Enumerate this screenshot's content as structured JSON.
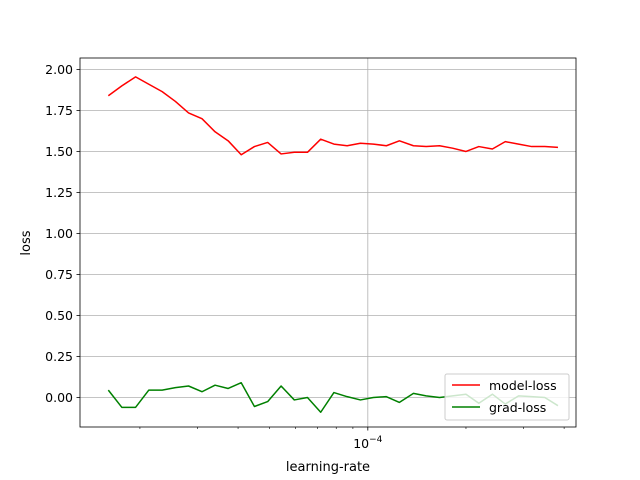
{
  "chart_data": {
    "type": "line",
    "xlabel": "learning-rate",
    "ylabel": "loss",
    "x_scale": "log",
    "x_tick_label": "10",
    "x_tick_exponent": "−4",
    "x_tick_value": 0.0001,
    "xlim": [
      1.31e-05,
      0.000435
    ],
    "ylim": [
      -0.18,
      2.07
    ],
    "y_ticks": [
      {
        "value": 0.0,
        "label": "0.00"
      },
      {
        "value": 0.25,
        "label": "0.25"
      },
      {
        "value": 0.5,
        "label": "0.50"
      },
      {
        "value": 0.75,
        "label": "0.75"
      },
      {
        "value": 1.0,
        "label": "1.00"
      },
      {
        "value": 1.25,
        "label": "1.25"
      },
      {
        "value": 1.5,
        "label": "1.50"
      },
      {
        "value": 1.75,
        "label": "1.75"
      },
      {
        "value": 2.0,
        "label": "2.00"
      }
    ],
    "grid": true,
    "legend_position": "bottom-right",
    "x": [
      1.6e-05,
      1.76e-05,
      1.94e-05,
      2.13e-05,
      2.34e-05,
      2.57e-05,
      2.82e-05,
      3.1e-05,
      3.4e-05,
      3.73e-05,
      4.09e-05,
      4.49e-05,
      4.93e-05,
      5.42e-05,
      5.95e-05,
      6.53e-05,
      7.17e-05,
      7.87e-05,
      8.64e-05,
      9.49e-05,
      0.000104,
      0.000114,
      0.000125,
      0.000138,
      0.000151,
      0.000166,
      0.000182,
      0.0002,
      0.000219,
      0.000241,
      0.000264,
      0.00029,
      0.000318,
      0.000349,
      0.000383
    ],
    "series": [
      {
        "name": "model-loss",
        "color": "#ff0000",
        "values": [
          1.84,
          1.9,
          1.955,
          1.91,
          1.865,
          1.805,
          1.735,
          1.7,
          1.62,
          1.565,
          1.48,
          1.53,
          1.555,
          1.485,
          1.495,
          1.495,
          1.575,
          1.545,
          1.535,
          1.55,
          1.545,
          1.535,
          1.565,
          1.535,
          1.53,
          1.535,
          1.52,
          1.5,
          1.53,
          1.515,
          1.56,
          1.545,
          1.53,
          1.53,
          1.525
        ]
      },
      {
        "name": "grad-loss",
        "color": "#008000",
        "values": [
          0.045,
          -0.06,
          -0.06,
          0.045,
          0.045,
          0.06,
          0.07,
          0.035,
          0.075,
          0.055,
          0.09,
          -0.055,
          -0.025,
          0.07,
          -0.015,
          0.0,
          -0.09,
          0.03,
          0.005,
          -0.015,
          0.0,
          0.005,
          -0.03,
          0.025,
          0.01,
          0.0,
          0.01,
          0.02,
          -0.035,
          0.02,
          -0.04,
          0.01,
          0.005,
          0.0,
          -0.05
        ]
      }
    ]
  }
}
